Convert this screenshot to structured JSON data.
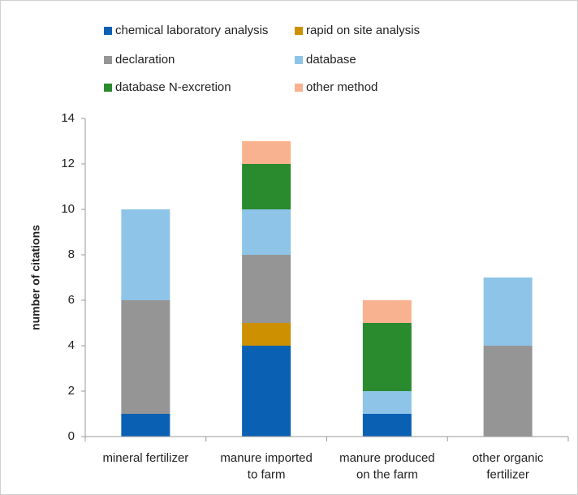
{
  "chart_data": {
    "type": "stacked_bar",
    "y_label": "number of citations",
    "categories": [
      "mineral fertilizer",
      "manure imported\nto farm",
      "manure produced\non the farm",
      "other organic\nfertilizer"
    ],
    "series": [
      {
        "name": "chemical laboratory analysis",
        "color": "#0a61b4",
        "values": [
          1,
          4,
          1,
          0
        ]
      },
      {
        "name": "rapid on site analysis",
        "color": "#cc9000",
        "values": [
          0,
          1,
          0,
          0
        ]
      },
      {
        "name": "declaration",
        "color": "#959595",
        "values": [
          5,
          3,
          0,
          4
        ]
      },
      {
        "name": "database",
        "color": "#8ec4e8",
        "values": [
          4,
          2,
          1,
          3
        ]
      },
      {
        "name": "database N-excretion",
        "color": "#2a8a2e",
        "values": [
          0,
          2,
          3,
          0
        ]
      },
      {
        "name": "other method",
        "color": "#f9b28f",
        "values": [
          0,
          1,
          1,
          0
        ]
      }
    ],
    "ylim": [
      0,
      14
    ],
    "yticks": [
      0,
      2,
      4,
      6,
      8,
      10,
      12,
      14
    ],
    "grid": false
  }
}
